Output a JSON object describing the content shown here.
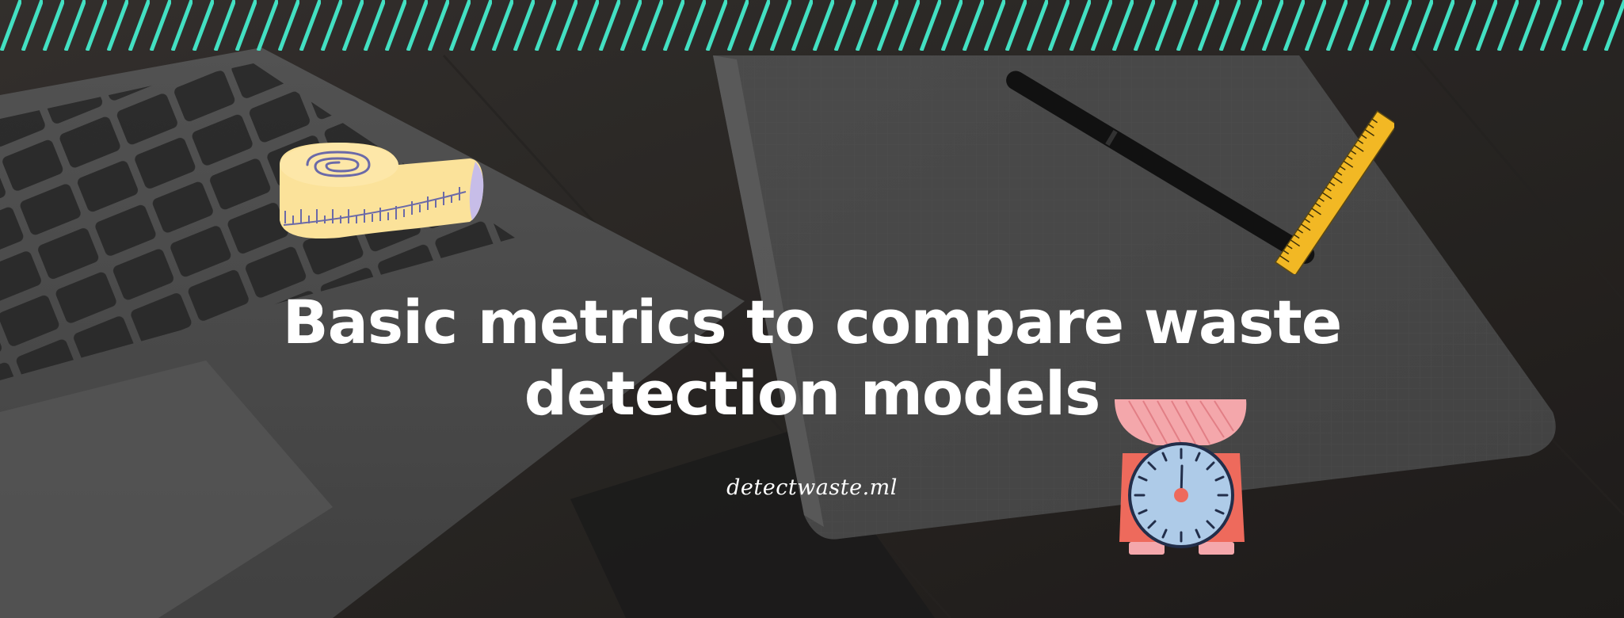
{
  "banner": {
    "title_line1": "Basic metrics to compare waste",
    "title_line2": "detection models",
    "site": "detectwaste.ml"
  },
  "colors": {
    "stripe": "#43e0c2",
    "title": "#ffffff",
    "tape": "#fbe29a",
    "ruler": "#f2b824",
    "scale_body": "#ee6a5c",
    "scale_bowl": "#f4a7ab",
    "scale_dial": "#aecbe8"
  },
  "icons": [
    "tape-measure-icon",
    "ruler-icon",
    "kitchen-scale-icon"
  ]
}
